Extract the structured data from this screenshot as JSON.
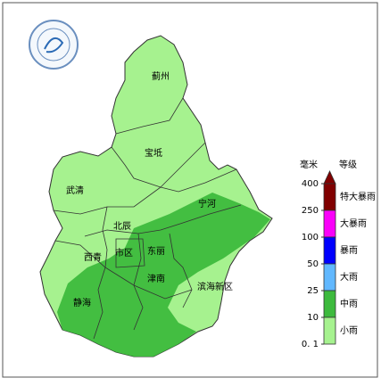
{
  "districts": [
    "蓟州",
    "宝坻",
    "武清",
    "宁河",
    "北辰",
    "西青",
    "市区",
    "东丽",
    "津南",
    "滨海新区",
    "静海"
  ],
  "legend": {
    "unit": "毫米",
    "grade": "等级",
    "ticks": [
      "400",
      "250",
      "100",
      "50",
      "25",
      "10",
      "0. 1"
    ],
    "levels": [
      {
        "label": "特大暴雨",
        "color": "#800000"
      },
      {
        "label": "大暴雨",
        "color": "#fa00fa"
      },
      {
        "label": "暴雨",
        "color": "#0000fe"
      },
      {
        "label": "大雨",
        "color": "#61b8ff"
      },
      {
        "label": "中雨",
        "color": "#3dba3d"
      },
      {
        "label": "小雨",
        "color": "#a6f28f"
      }
    ]
  }
}
